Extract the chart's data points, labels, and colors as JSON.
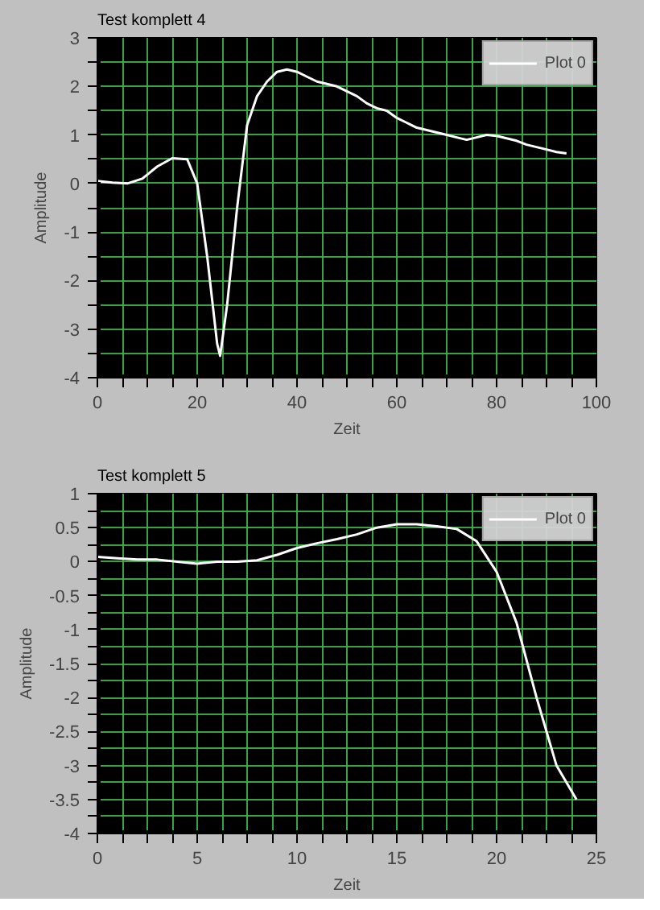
{
  "chart_data": [
    {
      "type": "line",
      "title": "Test komplett 4",
      "xlabel": "Zeit",
      "ylabel": "Amplitude",
      "xlim": [
        0,
        100
      ],
      "ylim": [
        -4,
        3
      ],
      "xticks": [
        0,
        {
          "value": 5,
          "label": null
        },
        {
          "value": 10,
          "label": null
        },
        {
          "value": 15,
          "label": null
        },
        20,
        {
          "value": 25,
          "label": null
        },
        {
          "value": 30,
          "label": null
        },
        {
          "value": 35,
          "label": null
        },
        40,
        {
          "value": 45,
          "label": null
        },
        {
          "value": 50,
          "label": null
        },
        {
          "value": 55,
          "label": null
        },
        60,
        {
          "value": 65,
          "label": null
        },
        {
          "value": 70,
          "label": null
        },
        {
          "value": 75,
          "label": null
        },
        80,
        {
          "value": 85,
          "label": null
        },
        {
          "value": 90,
          "label": null
        },
        {
          "value": 95,
          "label": null
        },
        100
      ],
      "yticks": [
        -4,
        {
          "value": -3.5,
          "label": null
        },
        -3,
        {
          "value": -2.5,
          "label": null
        },
        -2,
        {
          "value": -1.5,
          "label": null
        },
        -1,
        {
          "value": -0.5,
          "label": null
        },
        0,
        {
          "value": 0.5,
          "label": null
        },
        1,
        {
          "value": 1.5,
          "label": null
        },
        2,
        {
          "value": 2.5,
          "label": null
        },
        3
      ],
      "grid": true,
      "legend": "top right",
      "x": [
        0,
        3,
        6,
        9,
        12,
        15,
        18,
        20,
        22,
        24,
        24.6,
        26,
        28,
        30,
        32,
        34,
        36,
        38,
        40,
        42,
        44,
        46,
        48,
        50,
        52,
        54,
        56,
        58,
        60,
        62,
        64,
        66,
        68,
        70,
        72,
        74,
        76,
        78,
        80,
        82,
        84,
        86,
        88,
        90,
        92,
        94
      ],
      "series": [
        {
          "name": "Plot 0",
          "color": "#ffffff",
          "values": [
            0.05,
            0.02,
            0.0,
            0.1,
            0.35,
            0.52,
            0.5,
            0.0,
            -1.5,
            -3.3,
            -3.55,
            -2.5,
            -0.5,
            1.2,
            1.8,
            2.1,
            2.3,
            2.35,
            2.3,
            2.2,
            2.1,
            2.05,
            2.0,
            1.9,
            1.8,
            1.65,
            1.55,
            1.5,
            1.35,
            1.25,
            1.15,
            1.1,
            1.05,
            1.0,
            0.95,
            0.9,
            0.95,
            1.0,
            0.98,
            0.93,
            0.88,
            0.8,
            0.75,
            0.7,
            0.65,
            0.62
          ]
        }
      ]
    },
    {
      "type": "line",
      "title": "Test komplett 5",
      "xlabel": "Zeit",
      "ylabel": "Amplitude",
      "xlim": [
        0,
        25
      ],
      "ylim": [
        -4,
        1
      ],
      "xticks": [
        0,
        {
          "value": 1.25,
          "label": null
        },
        {
          "value": 2.5,
          "label": null
        },
        {
          "value": 3.75,
          "label": null
        },
        5,
        {
          "value": 6.25,
          "label": null
        },
        {
          "value": 7.5,
          "label": null
        },
        {
          "value": 8.75,
          "label": null
        },
        10,
        {
          "value": 11.25,
          "label": null
        },
        {
          "value": 12.5,
          "label": null
        },
        {
          "value": 13.75,
          "label": null
        },
        15,
        {
          "value": 16.25,
          "label": null
        },
        {
          "value": 17.5,
          "label": null
        },
        {
          "value": 18.75,
          "label": null
        },
        20,
        {
          "value": 21.25,
          "label": null
        },
        {
          "value": 22.5,
          "label": null
        },
        {
          "value": 23.75,
          "label": null
        },
        25
      ],
      "yticks": [
        -4,
        {
          "value": -3.75,
          "label": null
        },
        -3.5,
        {
          "value": -3.25,
          "label": null
        },
        -3,
        {
          "value": -2.75,
          "label": null
        },
        -2.5,
        {
          "value": -2.25,
          "label": null
        },
        -2,
        {
          "value": -1.75,
          "label": null
        },
        -1.5,
        {
          "value": -1.25,
          "label": null
        },
        -1,
        {
          "value": -0.75,
          "label": null
        },
        -0.5,
        {
          "value": -0.25,
          "label": null
        },
        0,
        {
          "value": 0.25,
          "label": null
        },
        0.5,
        {
          "value": 0.75,
          "label": null
        },
        1
      ],
      "grid": true,
      "legend": "top right",
      "x": [
        0,
        1,
        2,
        3,
        4,
        5,
        6,
        7,
        8,
        9,
        10,
        11,
        12,
        13,
        14,
        15,
        16,
        17,
        18,
        19,
        20,
        21,
        22,
        23,
        24
      ],
      "series": [
        {
          "name": "Plot 0",
          "color": "#ffffff",
          "values": [
            0.07,
            0.05,
            0.03,
            0.03,
            0.0,
            -0.03,
            0.0,
            0.0,
            0.02,
            0.1,
            0.2,
            0.27,
            0.33,
            0.4,
            0.5,
            0.55,
            0.55,
            0.52,
            0.48,
            0.3,
            -0.15,
            -0.9,
            -2.0,
            -3.0,
            -3.5
          ]
        }
      ]
    }
  ]
}
